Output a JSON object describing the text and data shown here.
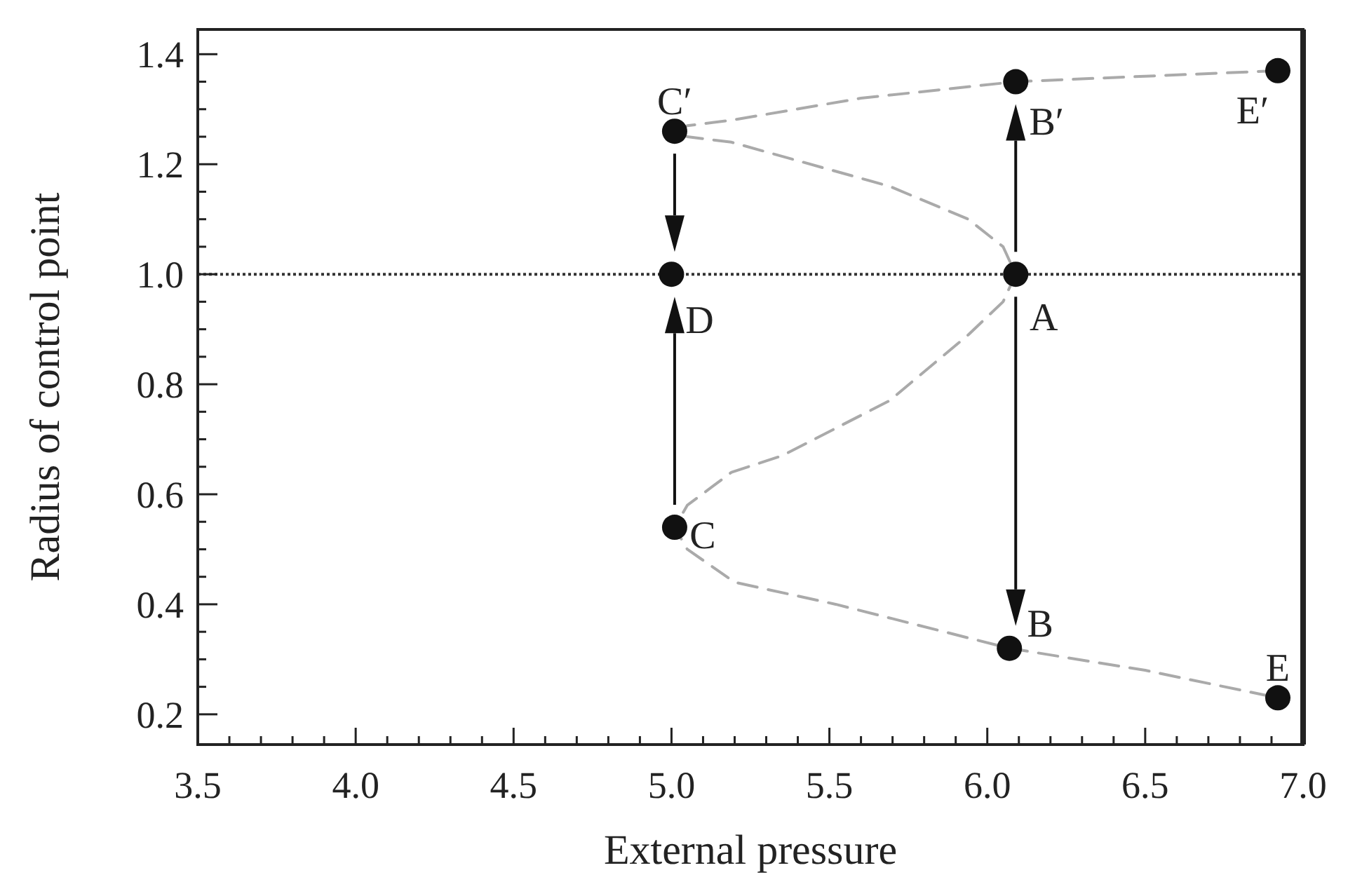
{
  "chart_data": {
    "type": "line",
    "xlabel": "External pressure",
    "ylabel": "Radius of control point",
    "xlim": [
      3.5,
      7.0
    ],
    "ylim": [
      0.145,
      1.445
    ],
    "xticks": [
      3.5,
      {
        "value": 3.6,
        "label": null
      },
      {
        "value": 3.7,
        "label": null
      },
      {
        "value": 3.8,
        "label": null
      },
      {
        "value": 3.9,
        "label": null
      },
      {
        "value": 4,
        "label": "4.0"
      },
      {
        "value": 4.1,
        "label": null
      },
      {
        "value": 4.2,
        "label": null
      },
      {
        "value": 4.3,
        "label": null
      },
      {
        "value": 4.4,
        "label": null
      },
      4.5,
      {
        "value": 4.6,
        "label": null
      },
      {
        "value": 4.7,
        "label": null
      },
      {
        "value": 4.8,
        "label": null
      },
      {
        "value": 4.9,
        "label": null
      },
      {
        "value": 5,
        "label": "5.0"
      },
      {
        "value": 5.1,
        "label": null
      },
      {
        "value": 5.2,
        "label": null
      },
      {
        "value": 5.3,
        "label": null
      },
      {
        "value": 5.4,
        "label": null
      },
      5.5,
      {
        "value": 5.6,
        "label": null
      },
      {
        "value": 5.7,
        "label": null
      },
      {
        "value": 5.8,
        "label": null
      },
      {
        "value": 5.9,
        "label": null
      },
      {
        "value": 6,
        "label": "6.0"
      },
      {
        "value": 6.1,
        "label": null
      },
      {
        "value": 6.2,
        "label": null
      },
      {
        "value": 6.3,
        "label": null
      },
      {
        "value": 6.4,
        "label": null
      },
      6.5,
      {
        "value": 6.6,
        "label": null
      },
      {
        "value": 6.7,
        "label": null
      },
      {
        "value": 6.8,
        "label": null
      },
      {
        "value": 6.9,
        "label": null
      },
      {
        "value": 7,
        "label": "7.0"
      }
    ],
    "yticks": [
      0.2,
      {
        "value": 0.25,
        "label": null
      },
      {
        "value": 0.3,
        "label": null
      },
      {
        "value": 0.35,
        "label": null
      },
      0.4,
      {
        "value": 0.45,
        "label": null
      },
      {
        "value": 0.5,
        "label": null
      },
      {
        "value": 0.55,
        "label": null
      },
      0.6,
      {
        "value": 0.65,
        "label": null
      },
      {
        "value": 0.7,
        "label": null
      },
      {
        "value": 0.75,
        "label": null
      },
      0.8,
      {
        "value": 0.85,
        "label": null
      },
      {
        "value": 0.9,
        "label": null
      },
      {
        "value": 0.95,
        "label": null
      },
      {
        "value": 1,
        "label": "1.0"
      },
      {
        "value": 1.05,
        "label": null
      },
      {
        "value": 1.1,
        "label": null
      },
      {
        "value": 1.15,
        "label": null
      },
      1.2,
      {
        "value": 1.25,
        "label": null
      },
      {
        "value": 1.3,
        "label": null
      },
      {
        "value": 1.35,
        "label": null
      },
      1.4
    ],
    "grid": false,
    "series": [
      {
        "color": "#aaaaaa",
        "line_style": "dashed",
        "marker": "none",
        "x": [
          6.92,
          6.5,
          6.09,
          5.6,
          5.19,
          5.05,
          5.01,
          5.05,
          5.19,
          5.69,
          5.94,
          6.05,
          6.09,
          6.05,
          5.94,
          5.69,
          5.35,
          5.19,
          5.05,
          5.01,
          5.05,
          5.2,
          5.52,
          6.07,
          6.5,
          6.92
        ],
        "values": [
          1.37,
          1.36,
          1.35,
          1.32,
          1.28,
          1.27,
          1.26,
          1.25,
          1.24,
          1.16,
          1.1,
          1.05,
          1.0,
          0.95,
          0.89,
          0.77,
          0.67,
          0.64,
          0.58,
          0.54,
          0.5,
          0.44,
          0.4,
          0.32,
          0.28,
          0.23
        ]
      },
      {
        "type": "scatter",
        "color": "#111111",
        "marker": "circle",
        "x": [
          5.01,
          6.09,
          6.92,
          5.0,
          6.09,
          5.01,
          6.07,
          6.92
        ],
        "values": [
          1.26,
          1.35,
          1.37,
          1.0,
          1.0,
          0.54,
          0.32,
          0.23
        ]
      }
    ],
    "ref_lines": [
      {
        "axis": "y",
        "value": 1.0,
        "label": null,
        "color": "#333333",
        "line_style": "dotted"
      }
    ],
    "annotations": [
      {
        "text": "C′",
        "x": 5.01,
        "y": 1.26
      },
      {
        "text": "B′",
        "x": 6.09,
        "y": 1.35
      },
      {
        "text": "E′",
        "x": 6.92,
        "y": 1.37
      },
      {
        "text": "D",
        "x": 5.0,
        "y": 1.0
      },
      {
        "text": "A",
        "x": 6.09,
        "y": 1.0
      },
      {
        "text": "C",
        "x": 5.01,
        "y": 0.54
      },
      {
        "text": "B",
        "x": 6.07,
        "y": 0.32
      },
      {
        "text": "E",
        "x": 6.92,
        "y": 0.23
      }
    ]
  }
}
